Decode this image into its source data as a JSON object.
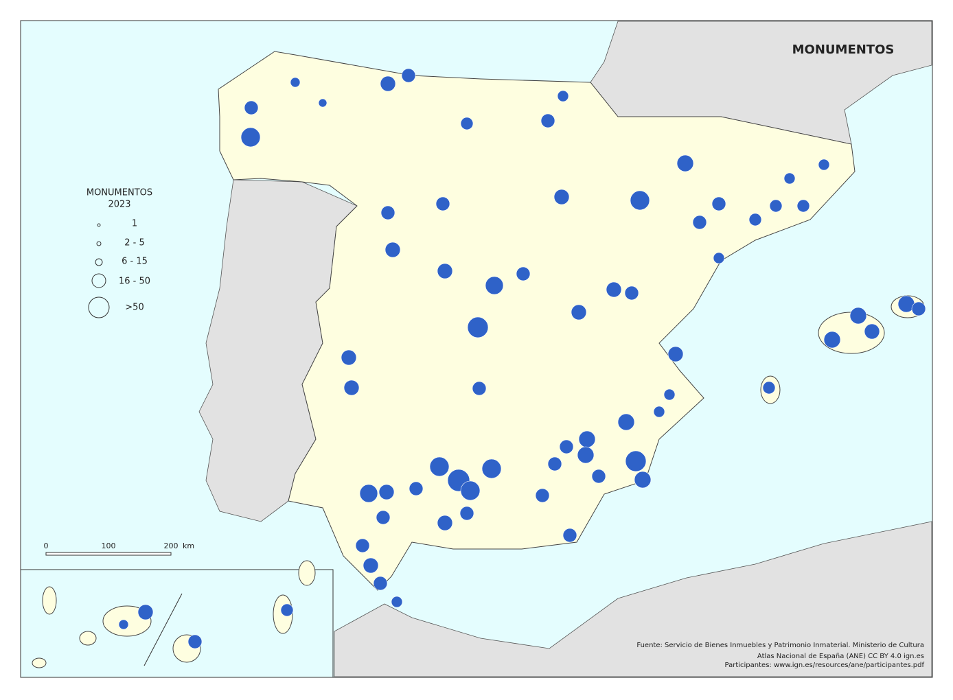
{
  "title": "MONUMENTOS",
  "legend": {
    "title": "MONUMENTOS",
    "year": "2023",
    "classes": [
      "1",
      "2 - 5",
      "6 - 15",
      "16 - 50",
      ">50"
    ]
  },
  "scale_bar": {
    "labels": [
      "0",
      "100",
      "200"
    ],
    "unit": "km"
  },
  "source": [
    "Fuente: Servicio de Bienes Inmuebles y Patrimonio Inmaterial. Ministerio de Cultura",
    "Atlas Nacional de España (ANE) CC BY 4.0 ign.es",
    "Participantes: www.ign.es/resources/ane/participantes.pdf"
  ]
}
